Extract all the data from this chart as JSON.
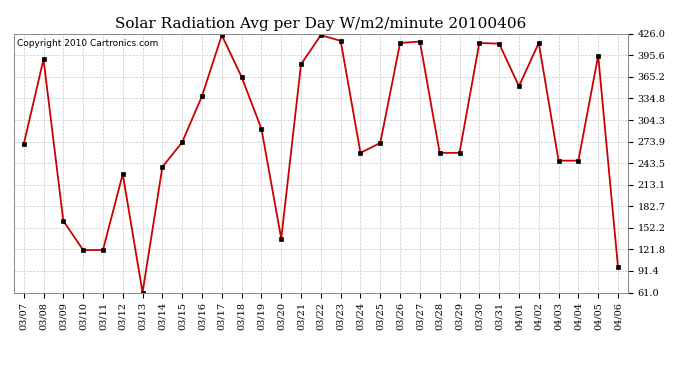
{
  "title": "Solar Radiation Avg per Day W/m2/minute 20100406",
  "copyright": "Copyright 2010 Cartronics.com",
  "dates": [
    "03/07",
    "03/08",
    "03/09",
    "03/10",
    "03/11",
    "03/12",
    "03/13",
    "03/14",
    "03/15",
    "03/16",
    "03/17",
    "03/18",
    "03/19",
    "03/20",
    "03/21",
    "03/22",
    "03/23",
    "03/24",
    "03/25",
    "03/26",
    "03/27",
    "03/28",
    "03/29",
    "03/30",
    "03/31",
    "04/01",
    "04/02",
    "04/03",
    "04/04",
    "04/05",
    "04/06"
  ],
  "values": [
    270,
    390,
    162,
    121,
    121,
    228,
    61,
    238,
    273,
    338,
    424,
    365,
    292,
    137,
    383,
    424,
    416,
    258,
    272,
    413,
    415,
    258,
    258,
    413,
    412,
    352,
    413,
    247,
    247,
    395,
    97
  ],
  "y_ticks": [
    61.0,
    91.4,
    121.8,
    152.2,
    182.7,
    213.1,
    243.5,
    273.9,
    304.3,
    334.8,
    365.2,
    395.6,
    426.0
  ],
  "ylim": [
    61.0,
    426.0
  ],
  "line_color": "#cc0000",
  "marker_color": "#000000",
  "bg_color": "#ffffff",
  "plot_bg_color": "#ffffff",
  "grid_color": "#c8c8c8",
  "title_fontsize": 11,
  "copyright_fontsize": 6.5,
  "tick_fontsize": 7,
  "ytick_fontsize": 7
}
